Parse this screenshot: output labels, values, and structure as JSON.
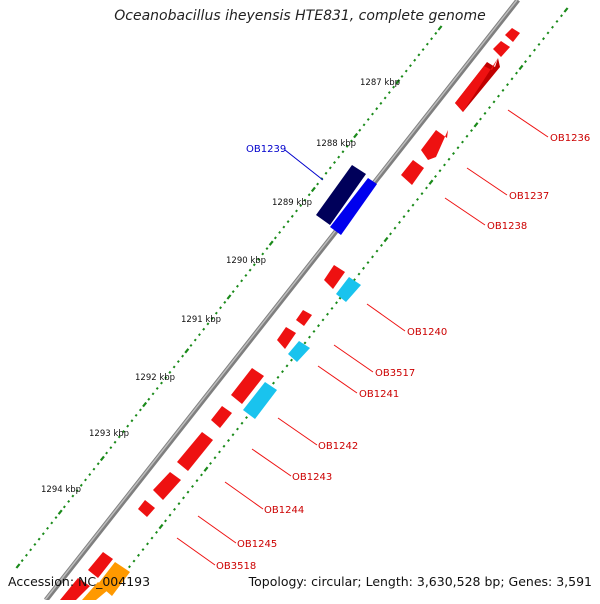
{
  "title": "Oceanobacillus iheyensis HTE831, complete genome",
  "footer": {
    "accession": "Accession: NC_004193",
    "summary": "Topology: circular; Length: 3,630,528 bp; Genes: 3,591"
  },
  "colors": {
    "backbone": "#808080",
    "forward_gene": "#ee0000",
    "reverse_gene": "#19c3ee",
    "highlight_gene": "#0000cc",
    "highlight_gene_dark": "#00005a",
    "scale_ticks": "#1a8a1a",
    "label_forward": "#cc0000",
    "label_highlight": "#0000cc",
    "orange_gene": "#ff9900"
  },
  "scale_labels": [
    "1287 kbp",
    "1288 kbp",
    "1289 kbp",
    "1290 kbp",
    "1291 kbp",
    "1292 kbp",
    "1293 kbp",
    "1294 kbp"
  ],
  "gene_labels": [
    {
      "name": "OB1236",
      "color": "red"
    },
    {
      "name": "OB1237",
      "color": "red"
    },
    {
      "name": "OB1238",
      "color": "red"
    },
    {
      "name": "OB1239",
      "color": "blue"
    },
    {
      "name": "OB1240",
      "color": "red"
    },
    {
      "name": "OB3517",
      "color": "red"
    },
    {
      "name": "OB1241",
      "color": "red"
    },
    {
      "name": "OB1242",
      "color": "red"
    },
    {
      "name": "OB1243",
      "color": "red"
    },
    {
      "name": "OB1244",
      "color": "red"
    },
    {
      "name": "OB1245",
      "color": "red"
    },
    {
      "name": "OB3518",
      "color": "red"
    }
  ]
}
